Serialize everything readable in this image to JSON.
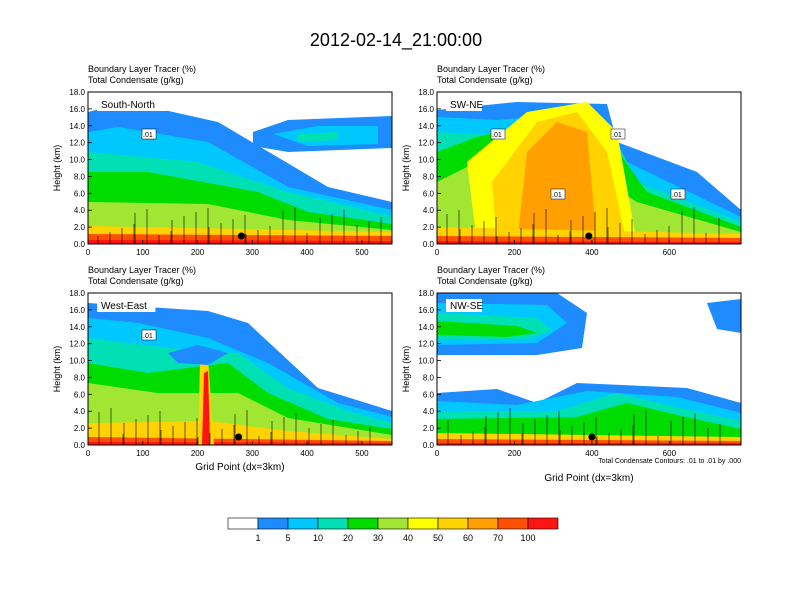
{
  "title": "2012-02-14_21:00:00",
  "footnote": "Total Condensate Contours: .01 to .01 by .000",
  "colors": {
    "bins": [
      "#ffffff",
      "#1e8cff",
      "#00c8ff",
      "#00e0b4",
      "#00dc00",
      "#a0e632",
      "#ffff00",
      "#ffd200",
      "#ffa000",
      "#ff5000",
      "#ff1414"
    ],
    "labels": [
      "1",
      "5",
      "10",
      "20",
      "30",
      "40",
      "50",
      "60",
      "70",
      "100"
    ]
  },
  "chart_data": [
    {
      "type": "heatmap",
      "subtitle": [
        "Boundary Layer Tracer    (%)",
        "Total Condensate    (g/kg)"
      ],
      "panel_label": "South-North",
      "ylabel": "Height (km)",
      "xlabel": "",
      "xticks": [
        0,
        100,
        200,
        300,
        400,
        500
      ],
      "xlim": [
        0,
        555
      ],
      "yticks": [
        "0.0",
        "2.0",
        "4.0",
        "6.0",
        "8.0",
        "10.0",
        "12.0",
        "14.0",
        "16.0",
        "18.0"
      ],
      "ylim": [
        0,
        18
      ],
      "contour_labels": [
        ".01"
      ],
      "marker_x": 280
    },
    {
      "type": "heatmap",
      "subtitle": [
        "Boundary Layer Tracer    (%)",
        "Total Condensate    (g/kg)"
      ],
      "panel_label": "SW-NE",
      "ylabel": "Height (km)",
      "xlabel": "",
      "xticks": [
        0,
        200,
        400,
        600
      ],
      "xlim": [
        0,
        785
      ],
      "yticks": [
        "0.0",
        "2.0",
        "4.0",
        "6.0",
        "8.0",
        "10.0",
        "12.0",
        "14.0",
        "16.0",
        "18.0"
      ],
      "ylim": [
        0,
        18
      ],
      "contour_labels": [
        ".01",
        ".01",
        ".01",
        ".01"
      ],
      "marker_x": 392
    },
    {
      "type": "heatmap",
      "subtitle": [
        "Boundary Layer Tracer    (%)",
        "Total Condensate    (g/kg)"
      ],
      "panel_label": "West-East",
      "ylabel": "Height (km)",
      "xlabel": "Grid Point (dx=3km)",
      "xticks": [
        0,
        100,
        200,
        300,
        400,
        500
      ],
      "xlim": [
        0,
        555
      ],
      "yticks": [
        "0.0",
        "2.0",
        "4.0",
        "6.0",
        "8.0",
        "10.0",
        "12.0",
        "14.0",
        "16.0",
        "18.0"
      ],
      "ylim": [
        0,
        18
      ],
      "contour_labels": [
        ".01"
      ],
      "marker_x": 275
    },
    {
      "type": "heatmap",
      "subtitle": [
        "Boundary Layer Tracer    (%)",
        "Total Condensate    (g/kg)"
      ],
      "panel_label": "NW-SE",
      "ylabel": "Height (km)",
      "xlabel": "Grid Point (dx=3km)",
      "xticks": [
        0,
        200,
        400,
        600
      ],
      "xlim": [
        0,
        785
      ],
      "yticks": [
        "0.0",
        "2.0",
        "4.0",
        "6.0",
        "8.0",
        "10.0",
        "12.0",
        "14.0",
        "16.0",
        "18.0"
      ],
      "ylim": [
        0,
        18
      ],
      "contour_labels": [],
      "marker_x": 400
    }
  ]
}
